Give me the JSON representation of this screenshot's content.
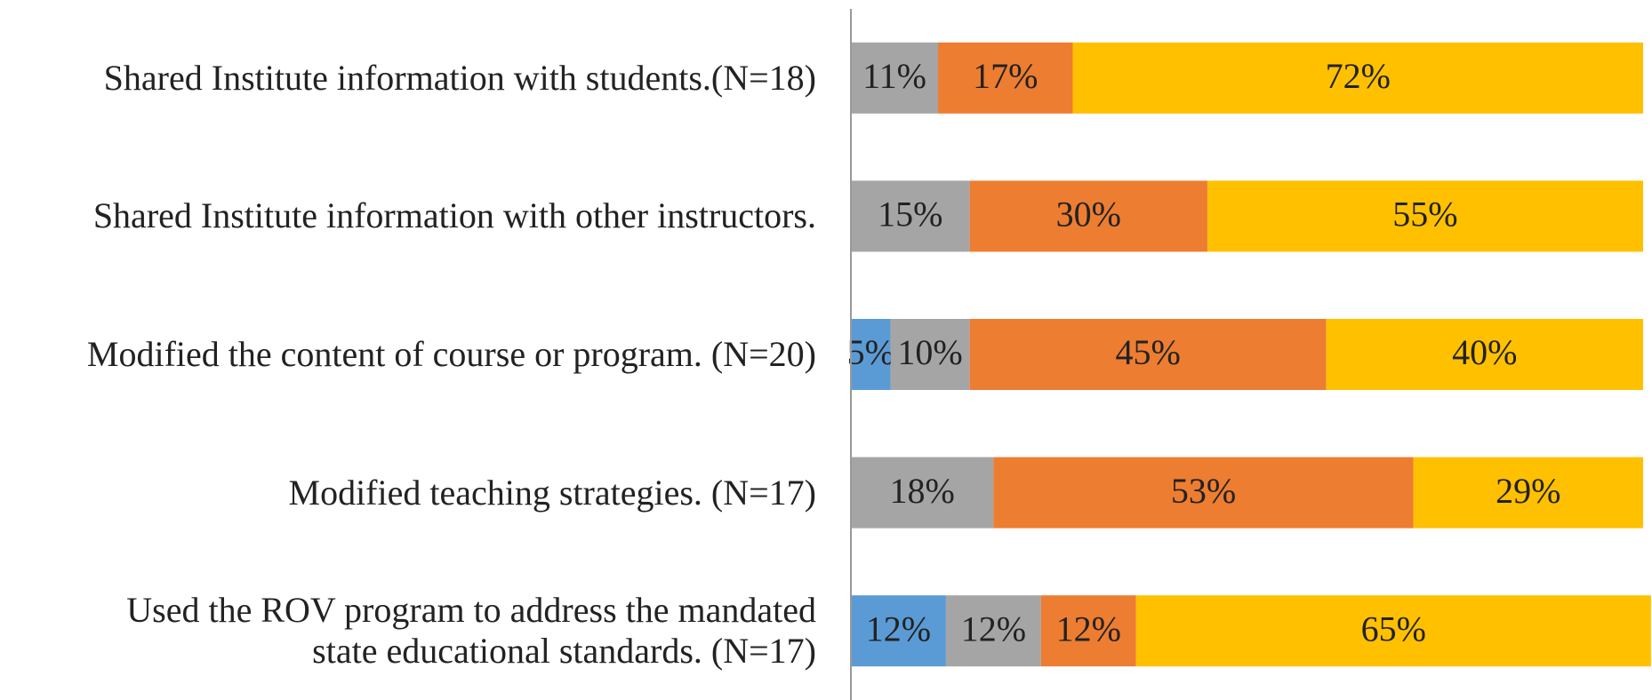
{
  "chart_data": {
    "type": "stacked_bar_horizontal",
    "categories": [
      "Shared Institute information with students.(N=18)",
      "Shared Institute information with other instructors.",
      "Modified the content of course or program. (N=20)",
      "Modified teaching strategies. (N=17)",
      "Used the ROV program to address the mandated\nstate educational standards. (N=17)"
    ],
    "series": [
      {
        "color": "#5b9bd5",
        "values": [
          null,
          null,
          5,
          null,
          12
        ],
        "value_labels": [
          null,
          null,
          "5%",
          null,
          "12%"
        ]
      },
      {
        "color": "#a5a5a5",
        "values": [
          11,
          15,
          10,
          18,
          12
        ],
        "value_labels": [
          "11%",
          "15%",
          "10%",
          "18%",
          "12%"
        ]
      },
      {
        "color": "#ed7d31",
        "values": [
          17,
          30,
          45,
          53,
          12
        ],
        "value_labels": [
          "17%",
          "30%",
          "45%",
          "53%",
          "12%"
        ]
      },
      {
        "color": "#ffc000",
        "values": [
          72,
          55,
          40,
          29,
          65
        ],
        "value_labels": [
          "72%",
          "55%",
          "40%",
          "29%",
          "65%"
        ]
      }
    ],
    "xlim": [
      0,
      100
    ]
  }
}
